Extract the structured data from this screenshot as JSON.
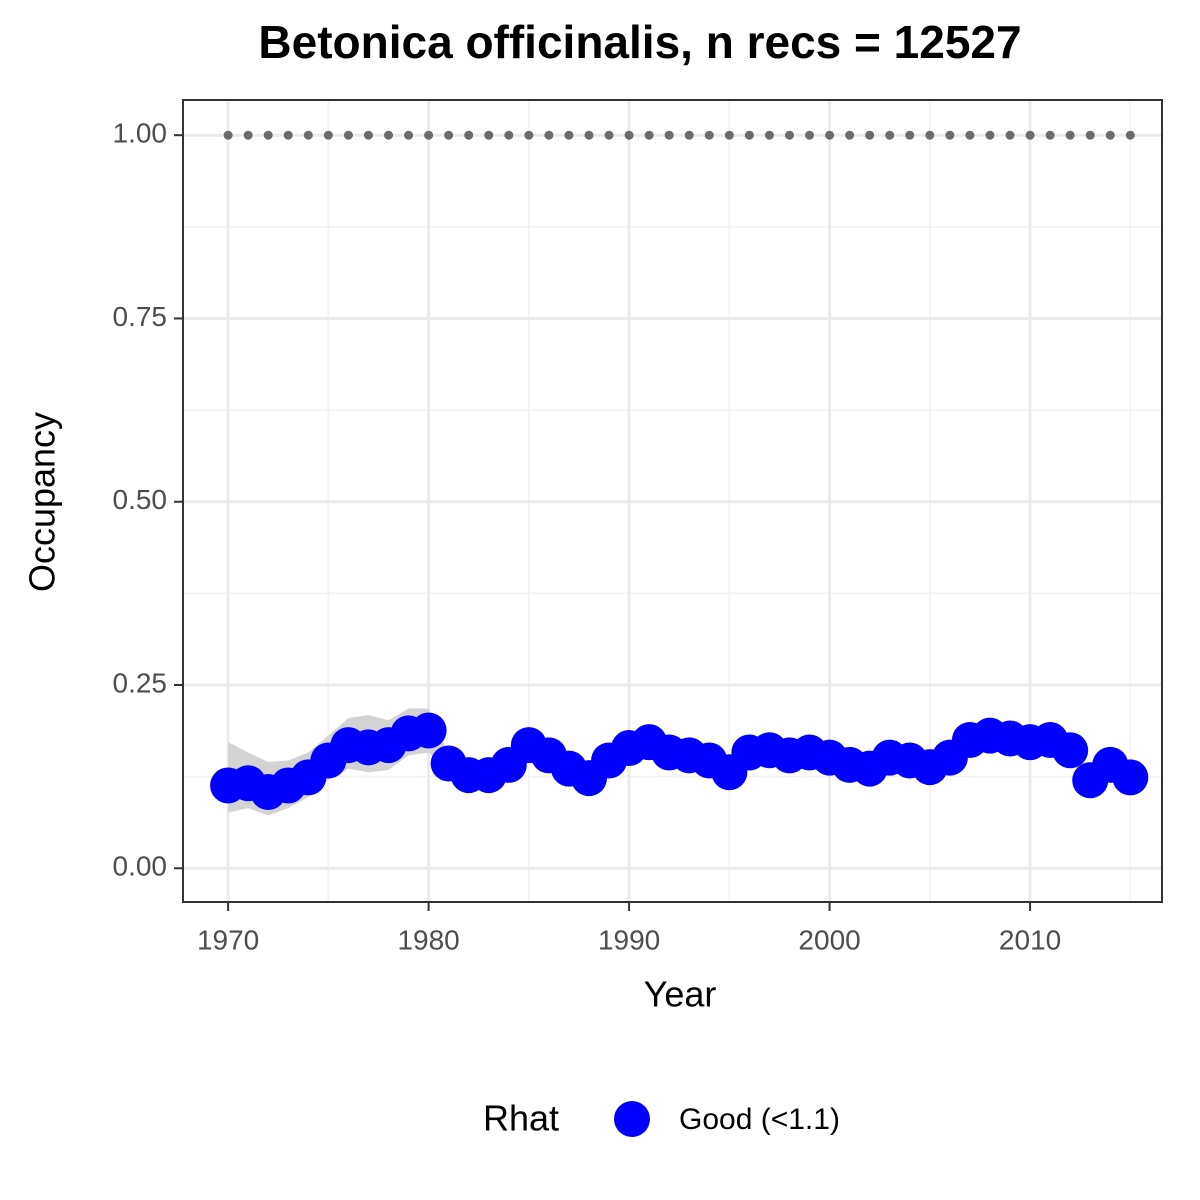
{
  "chart_data": {
    "type": "scatter",
    "title": "Betonica officinalis, n recs = 12527",
    "x_label": "Year",
    "y_label": "Occupancy",
    "x": [
      1970,
      1971,
      1972,
      1973,
      1974,
      1975,
      1976,
      1977,
      1978,
      1979,
      1980,
      1981,
      1982,
      1983,
      1984,
      1985,
      1986,
      1987,
      1988,
      1989,
      1990,
      1991,
      1992,
      1993,
      1994,
      1995,
      1996,
      1997,
      1998,
      1999,
      2000,
      2001,
      2002,
      2003,
      2004,
      2005,
      2006,
      2007,
      2008,
      2009,
      2010,
      2011,
      2012,
      2013,
      2014,
      2015
    ],
    "series": [
      {
        "name": "Good (<1.1)",
        "color": "#0000ff",
        "values": [
          0.113,
          0.116,
          0.104,
          0.113,
          0.124,
          0.147,
          0.168,
          0.165,
          0.168,
          0.184,
          0.188,
          0.143,
          0.127,
          0.127,
          0.141,
          0.168,
          0.154,
          0.136,
          0.123,
          0.147,
          0.164,
          0.172,
          0.158,
          0.154,
          0.147,
          0.131,
          0.158,
          0.161,
          0.154,
          0.158,
          0.151,
          0.141,
          0.136,
          0.151,
          0.147,
          0.138,
          0.151,
          0.175,
          0.181,
          0.177,
          0.172,
          0.175,
          0.161,
          0.12,
          0.141,
          0.124
        ],
        "lower": [
          0.076,
          0.082,
          0.072,
          0.082,
          0.097,
          0.12,
          0.136,
          0.131,
          0.134,
          0.154,
          0.158,
          0.131,
          0.115,
          0.115,
          0.129,
          0.156,
          0.142,
          0.124,
          0.111,
          0.135,
          0.152,
          0.16,
          0.146,
          0.142,
          0.135,
          0.119,
          0.146,
          0.149,
          0.142,
          0.146,
          0.139,
          0.129,
          0.124,
          0.139,
          0.135,
          0.126,
          0.139,
          0.163,
          0.169,
          0.165,
          0.16,
          0.163,
          0.149,
          0.108,
          0.129,
          0.112
        ],
        "upper": [
          0.172,
          0.158,
          0.145,
          0.147,
          0.158,
          0.181,
          0.205,
          0.209,
          0.202,
          0.218,
          0.218,
          0.155,
          0.139,
          0.139,
          0.153,
          0.18,
          0.166,
          0.148,
          0.135,
          0.159,
          0.176,
          0.184,
          0.17,
          0.166,
          0.159,
          0.143,
          0.17,
          0.173,
          0.166,
          0.17,
          0.163,
          0.153,
          0.148,
          0.163,
          0.159,
          0.15,
          0.163,
          0.187,
          0.193,
          0.189,
          0.184,
          0.187,
          0.173,
          0.132,
          0.153,
          0.136
        ],
        "band_color": "#d3d3d3"
      },
      {
        "color": "#6b6b6b",
        "values": [
          1,
          1,
          1,
          1,
          1,
          1,
          1,
          1,
          1,
          1,
          1,
          1,
          1,
          1,
          1,
          1,
          1,
          1,
          1,
          1,
          1,
          1,
          1,
          1,
          1,
          1,
          1,
          1,
          1,
          1,
          1,
          1,
          1,
          1,
          1,
          1,
          1,
          1,
          1,
          1,
          1,
          1,
          1,
          1,
          1,
          1
        ]
      }
    ],
    "xlim": [
      1967.75,
      2016.58
    ],
    "ylim": [
      -0.046,
      1.048
    ],
    "xticks": [
      1970,
      1980,
      1990,
      2000,
      2010
    ],
    "yticks": [
      {
        "value": 0,
        "label": "0.00"
      },
      {
        "value": 0.25,
        "label": "0.25"
      },
      {
        "value": 0.5,
        "label": "0.50"
      },
      {
        "value": 0.75,
        "label": "0.75"
      },
      {
        "value": 1,
        "label": "1.00"
      }
    ],
    "grid": true,
    "legend_title": "Rhat",
    "legend_position": "bottom"
  }
}
